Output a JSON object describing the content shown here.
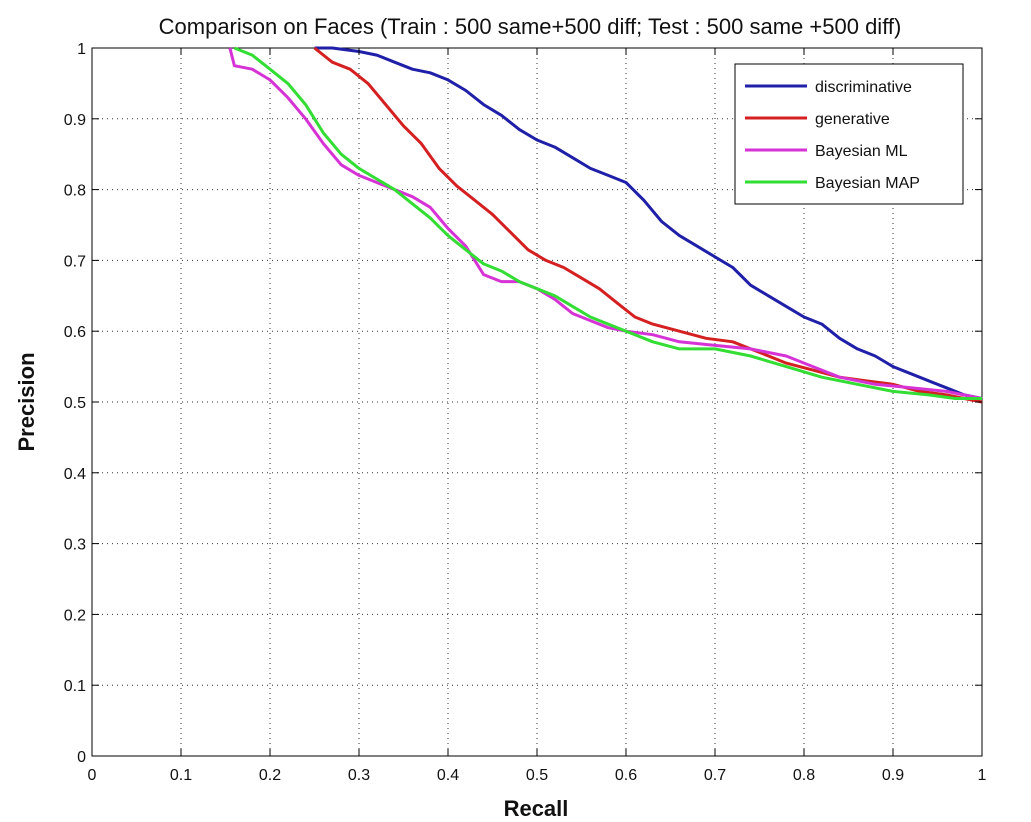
{
  "chart_data": {
    "type": "line",
    "title": "Comparison on Faces (Train : 500 same+500 diff; Test : 500 same +500 diff)",
    "xlabel": "Recall",
    "ylabel": "Precision",
    "xlim": [
      0,
      1
    ],
    "ylim": [
      0,
      1
    ],
    "xticks": [
      0,
      0.1,
      0.2,
      0.3,
      0.4,
      0.5,
      0.6,
      0.7,
      0.8,
      0.9,
      1
    ],
    "yticks": [
      0,
      0.1,
      0.2,
      0.3,
      0.4,
      0.5,
      0.6,
      0.7,
      0.8,
      0.9,
      1
    ],
    "xtick_labels": [
      "0",
      "0.1",
      "0.2",
      "0.3",
      "0.4",
      "0.5",
      "0.6",
      "0.7",
      "0.8",
      "0.9",
      "1"
    ],
    "ytick_labels": [
      "0",
      "0.1",
      "0.2",
      "0.3",
      "0.4",
      "0.5",
      "0.6",
      "0.7",
      "0.8",
      "0.9",
      "1"
    ],
    "grid": true,
    "legend_position": "top-right",
    "series": [
      {
        "name": "discriminative",
        "color": "#1f1fa8",
        "x": [
          0.25,
          0.27,
          0.3,
          0.32,
          0.34,
          0.36,
          0.38,
          0.4,
          0.42,
          0.44,
          0.46,
          0.48,
          0.5,
          0.52,
          0.54,
          0.56,
          0.58,
          0.6,
          0.62,
          0.64,
          0.66,
          0.68,
          0.7,
          0.72,
          0.74,
          0.76,
          0.78,
          0.8,
          0.82,
          0.84,
          0.86,
          0.88,
          0.9,
          0.92,
          0.94,
          0.96,
          0.98,
          1.0
        ],
        "y": [
          1.0,
          1.0,
          0.995,
          0.99,
          0.98,
          0.97,
          0.965,
          0.955,
          0.94,
          0.92,
          0.905,
          0.885,
          0.87,
          0.86,
          0.845,
          0.83,
          0.82,
          0.81,
          0.785,
          0.755,
          0.735,
          0.72,
          0.705,
          0.69,
          0.665,
          0.65,
          0.635,
          0.62,
          0.61,
          0.59,
          0.575,
          0.565,
          0.55,
          0.54,
          0.53,
          0.52,
          0.51,
          0.505
        ]
      },
      {
        "name": "generative",
        "color": "#d42020",
        "x": [
          0.25,
          0.27,
          0.29,
          0.31,
          0.33,
          0.35,
          0.37,
          0.39,
          0.41,
          0.43,
          0.45,
          0.47,
          0.49,
          0.51,
          0.53,
          0.55,
          0.57,
          0.59,
          0.61,
          0.63,
          0.66,
          0.69,
          0.72,
          0.75,
          0.78,
          0.81,
          0.84,
          0.87,
          0.9,
          0.93,
          0.96,
          0.98,
          1.0
        ],
        "y": [
          1.0,
          0.98,
          0.97,
          0.95,
          0.92,
          0.89,
          0.865,
          0.83,
          0.805,
          0.785,
          0.765,
          0.74,
          0.715,
          0.7,
          0.69,
          0.675,
          0.66,
          0.64,
          0.62,
          0.61,
          0.6,
          0.59,
          0.585,
          0.57,
          0.555,
          0.545,
          0.535,
          0.53,
          0.525,
          0.515,
          0.51,
          0.505,
          0.5
        ]
      },
      {
        "name": "Bayesian ML",
        "color": "#d633d6",
        "x": [
          0.155,
          0.16,
          0.18,
          0.2,
          0.22,
          0.24,
          0.26,
          0.28,
          0.3,
          0.32,
          0.34,
          0.36,
          0.38,
          0.4,
          0.42,
          0.44,
          0.46,
          0.48,
          0.5,
          0.52,
          0.54,
          0.56,
          0.58,
          0.6,
          0.63,
          0.66,
          0.7,
          0.74,
          0.78,
          0.81,
          0.84,
          0.88,
          0.92,
          0.96,
          1.0
        ],
        "y": [
          1.0,
          0.975,
          0.97,
          0.955,
          0.93,
          0.9,
          0.865,
          0.835,
          0.82,
          0.81,
          0.8,
          0.79,
          0.775,
          0.745,
          0.72,
          0.68,
          0.67,
          0.67,
          0.66,
          0.645,
          0.625,
          0.615,
          0.605,
          0.6,
          0.595,
          0.585,
          0.58,
          0.575,
          0.565,
          0.55,
          0.535,
          0.525,
          0.52,
          0.515,
          0.505
        ]
      },
      {
        "name": "Bayesian MAP",
        "color": "#33dd33",
        "x": [
          0.16,
          0.18,
          0.2,
          0.22,
          0.24,
          0.26,
          0.28,
          0.3,
          0.32,
          0.34,
          0.36,
          0.38,
          0.4,
          0.42,
          0.44,
          0.46,
          0.48,
          0.5,
          0.52,
          0.54,
          0.56,
          0.58,
          0.6,
          0.63,
          0.66,
          0.7,
          0.74,
          0.78,
          0.82,
          0.86,
          0.9,
          0.94,
          0.97,
          1.0
        ],
        "y": [
          1.0,
          0.99,
          0.97,
          0.95,
          0.92,
          0.88,
          0.85,
          0.83,
          0.815,
          0.8,
          0.78,
          0.76,
          0.735,
          0.715,
          0.695,
          0.685,
          0.67,
          0.66,
          0.65,
          0.635,
          0.62,
          0.61,
          0.6,
          0.585,
          0.575,
          0.575,
          0.565,
          0.55,
          0.535,
          0.525,
          0.515,
          0.51,
          0.505,
          0.505
        ]
      }
    ]
  }
}
